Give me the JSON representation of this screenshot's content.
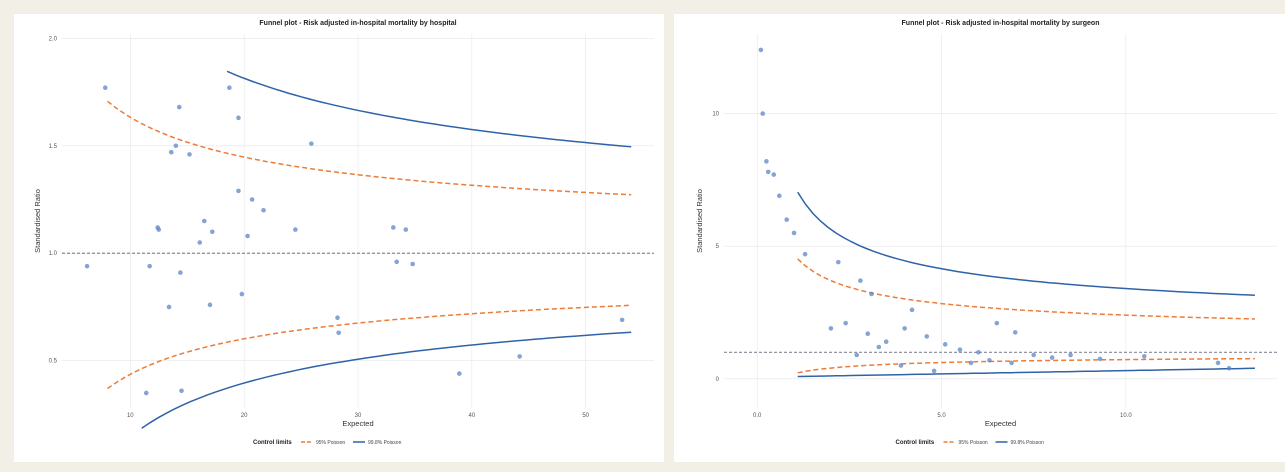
{
  "colors": {
    "l95": "#ee7b37",
    "l998": "#2f63a8",
    "point": "#5b86c4",
    "ref": "#8a8a98",
    "grid": "#e6e6e6"
  },
  "legend": {
    "title": "Control limits",
    "items": [
      "95% Poisson",
      "99.8% Poisson"
    ]
  },
  "chart_data": [
    {
      "type": "scatter",
      "title": "Funnel plot -  Risk adjusted in-hospital mortality by hospital",
      "xlabel": "Expected",
      "ylabel": "Standardised Ratio",
      "xlim": [
        4,
        56
      ],
      "ylim": [
        0.28,
        2.02
      ],
      "xticks": [
        10,
        20,
        30,
        40,
        50
      ],
      "xtick_labels": [
        "10",
        "20",
        "30",
        "40",
        "50"
      ],
      "yticks": [
        0.5,
        1.0,
        1.5,
        2.0
      ],
      "ytick_labels": [
        "0.5",
        "1.0",
        "1.5",
        "2.0"
      ],
      "reference_line": 1.0,
      "grid": true,
      "legend_position": "bottom",
      "points": [
        [
          6.2,
          0.94
        ],
        [
          7.8,
          1.77
        ],
        [
          11.4,
          0.35
        ],
        [
          11.7,
          0.94
        ],
        [
          12.4,
          1.12
        ],
        [
          12.5,
          1.11
        ],
        [
          13.4,
          0.75
        ],
        [
          13.6,
          1.47
        ],
        [
          14,
          1.5
        ],
        [
          14.3,
          1.68
        ],
        [
          14.4,
          0.91
        ],
        [
          14.5,
          0.36
        ],
        [
          15.2,
          1.46
        ],
        [
          16.1,
          1.05
        ],
        [
          16.5,
          1.15
        ],
        [
          17,
          0.76
        ],
        [
          17.2,
          1.1
        ],
        [
          18.7,
          1.77
        ],
        [
          19.5,
          1.63
        ],
        [
          19.5,
          1.29
        ],
        [
          19.8,
          0.81
        ],
        [
          20.3,
          1.08
        ],
        [
          20.7,
          1.25
        ],
        [
          21.7,
          1.2
        ],
        [
          24.5,
          1.11
        ],
        [
          25.9,
          1.51
        ],
        [
          28.2,
          0.7
        ],
        [
          28.3,
          0.63
        ],
        [
          33.1,
          1.12
        ],
        [
          33.4,
          0.96
        ],
        [
          34.2,
          1.11
        ],
        [
          34.8,
          0.95
        ],
        [
          38.9,
          0.44
        ],
        [
          44.2,
          0.52
        ],
        [
          53.2,
          0.69
        ]
      ],
      "limits": {
        "l95_x_start": 8,
        "l998_x_start": 18.5,
        "l998_lower_x_start": 11,
        "x_end": 54
      }
    },
    {
      "type": "scatter",
      "title": "Funnel plot -  Risk adjusted in-hospital mortality by surgeon",
      "xlabel": "Expected",
      "ylabel": "Standardised Ratio",
      "xlim": [
        -0.9,
        14.1
      ],
      "ylim": [
        -1.1,
        13
      ],
      "xticks": [
        0,
        5,
        10
      ],
      "xtick_labels": [
        "0.0",
        "5.0",
        "10.0"
      ],
      "yticks": [
        0,
        5,
        10
      ],
      "ytick_labels": [
        "0",
        "5",
        "10"
      ],
      "reference_line": 1.0,
      "grid": true,
      "legend_position": "bottom",
      "points": [
        [
          0.1,
          12.4
        ],
        [
          0.15,
          10
        ],
        [
          0.25,
          8.2
        ],
        [
          0.3,
          7.8
        ],
        [
          0.45,
          7.7
        ],
        [
          0.6,
          6.9
        ],
        [
          0.8,
          6.0
        ],
        [
          1.0,
          5.5
        ],
        [
          1.3,
          4.7
        ],
        [
          2.2,
          4.4
        ],
        [
          2.8,
          3.7
        ],
        [
          3.1,
          3.2
        ],
        [
          4.2,
          2.6
        ],
        [
          6.5,
          2.1
        ],
        [
          7.0,
          1.75
        ],
        [
          7.5,
          0.9
        ],
        [
          10.5,
          0.85
        ],
        [
          12.5,
          0.6
        ],
        [
          12.8,
          0.4
        ],
        [
          2.0,
          1.9
        ],
        [
          2.4,
          2.1
        ],
        [
          3.0,
          1.7
        ],
        [
          3.5,
          1.4
        ],
        [
          4.0,
          1.9
        ],
        [
          4.6,
          1.6
        ],
        [
          5.1,
          1.3
        ],
        [
          5.5,
          1.1
        ],
        [
          6.0,
          1.0
        ],
        [
          6.3,
          0.7
        ],
        [
          6.9,
          0.6
        ],
        [
          8.0,
          0.8
        ],
        [
          8.5,
          0.9
        ],
        [
          9.3,
          0.75
        ],
        [
          3.3,
          1.2
        ],
        [
          2.7,
          0.9
        ],
        [
          3.9,
          0.5
        ],
        [
          4.8,
          0.3
        ],
        [
          5.8,
          0.6
        ]
      ],
      "limits": {
        "l95_x_start": 1.1,
        "l998_x_start": 1.1,
        "x_end": 13.5
      }
    }
  ]
}
